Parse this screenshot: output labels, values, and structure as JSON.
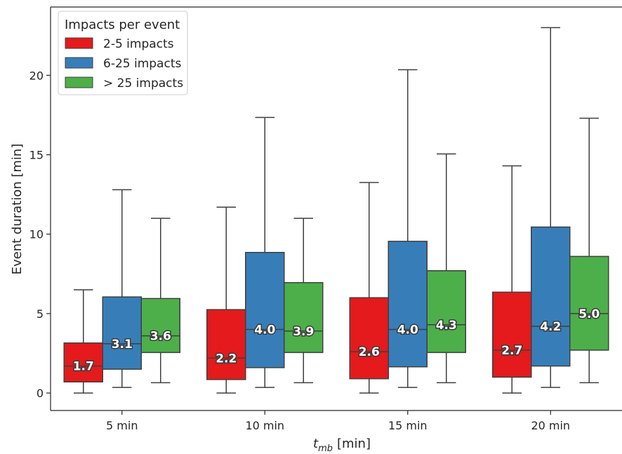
{
  "chart_data": {
    "type": "box",
    "xlabel_main": "t",
    "xlabel_sub": "mb",
    "xlabel_unit": "[min]",
    "ylabel": "Event duration [min]",
    "ylim": [
      -1.1,
      24.3
    ],
    "yticks": [
      0,
      5,
      10,
      15,
      20
    ],
    "categories": [
      "5 min",
      "10 min",
      "15 min",
      "20 min"
    ],
    "legend": {
      "title": "Impacts per event",
      "placement": "top-left"
    },
    "series": [
      {
        "name": "2-5 impacts",
        "color": "#e41a1c",
        "boxes": [
          {
            "whislo": 0.0,
            "q1": 0.7,
            "med": 1.7,
            "q3": 3.15,
            "whishi": 6.5,
            "label": "1.7"
          },
          {
            "whislo": 0.0,
            "q1": 0.85,
            "med": 2.2,
            "q3": 5.25,
            "whishi": 11.7,
            "label": "2.2"
          },
          {
            "whislo": 0.0,
            "q1": 0.9,
            "med": 2.6,
            "q3": 6.0,
            "whishi": 13.25,
            "label": "2.6"
          },
          {
            "whislo": 0.0,
            "q1": 1.0,
            "med": 2.7,
            "q3": 6.35,
            "whishi": 14.3,
            "label": "2.7"
          }
        ]
      },
      {
        "name": "6-25 impacts",
        "color": "#377eb8",
        "boxes": [
          {
            "whislo": 0.35,
            "q1": 1.5,
            "med": 3.1,
            "q3": 6.05,
            "whishi": 12.8,
            "label": "3.1"
          },
          {
            "whislo": 0.35,
            "q1": 1.6,
            "med": 4.0,
            "q3": 8.85,
            "whishi": 17.35,
            "label": "4.0"
          },
          {
            "whislo": 0.35,
            "q1": 1.65,
            "med": 4.0,
            "q3": 9.55,
            "whishi": 20.35,
            "label": "4.0"
          },
          {
            "whislo": 0.35,
            "q1": 1.7,
            "med": 4.2,
            "q3": 10.45,
            "whishi": 23.0,
            "label": "4.2"
          }
        ]
      },
      {
        "name": "> 25 impacts",
        "color": "#4daf4a",
        "boxes": [
          {
            "whislo": 0.65,
            "q1": 2.55,
            "med": 3.6,
            "q3": 5.95,
            "whishi": 11.0,
            "label": "3.6"
          },
          {
            "whislo": 0.65,
            "q1": 2.55,
            "med": 3.9,
            "q3": 6.95,
            "whishi": 11.0,
            "label": "3.9"
          },
          {
            "whislo": 0.65,
            "q1": 2.55,
            "med": 4.3,
            "q3": 7.7,
            "whishi": 15.05,
            "label": "4.3"
          },
          {
            "whislo": 0.65,
            "q1": 2.7,
            "med": 5.0,
            "q3": 8.6,
            "whishi": 17.3,
            "label": "5.0"
          }
        ]
      }
    ]
  }
}
